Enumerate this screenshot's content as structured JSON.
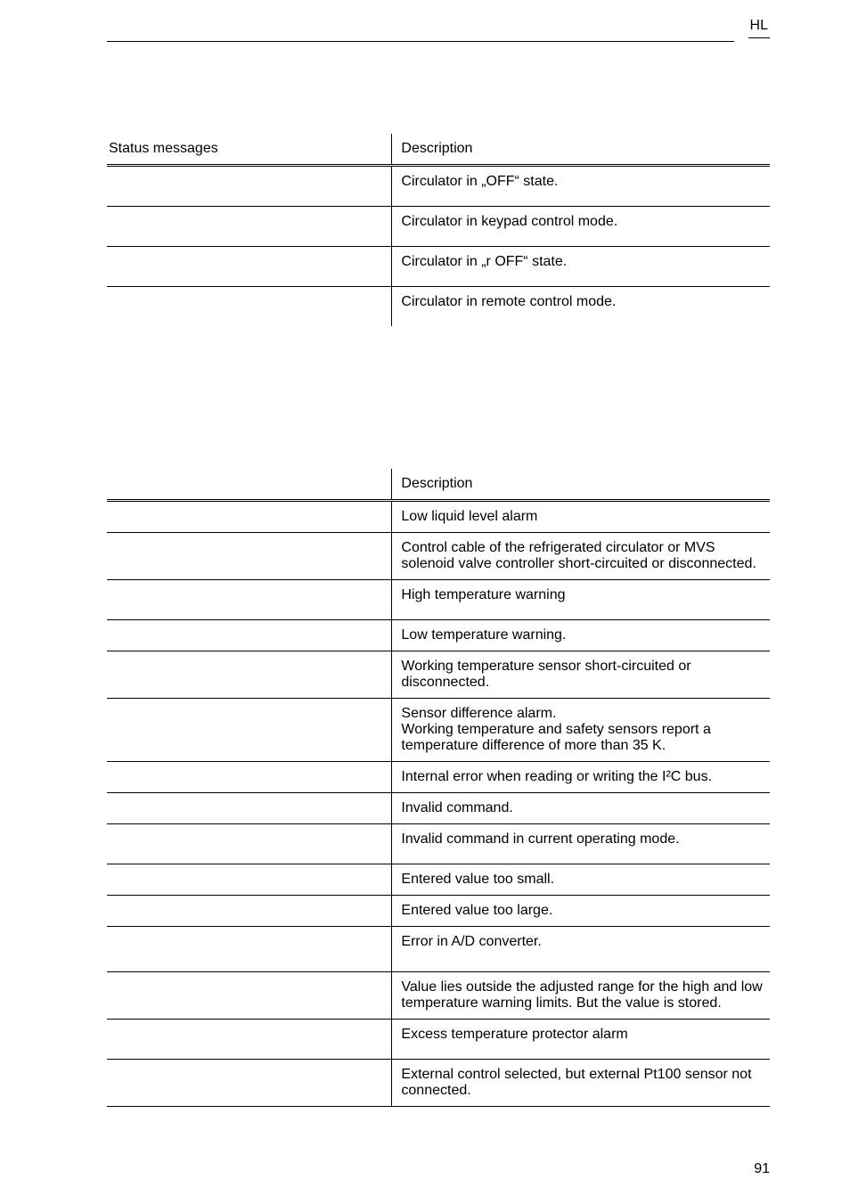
{
  "header": {
    "hl": "HL"
  },
  "table1": {
    "head_left": "Status messages",
    "head_right": "Description",
    "rows": [
      {
        "right": "Circulator in „OFF“ state."
      },
      {
        "right": "Circulator in keypad control mode."
      },
      {
        "right": "Circulator in „r OFF“ state."
      },
      {
        "right": "Circulator in remote control mode."
      }
    ]
  },
  "table2": {
    "head_right": "Description",
    "rows": [
      {
        "right": "Low liquid level alarm"
      },
      {
        "right": "Control cable of the refrigerated circulator or MVS\nsolenoid valve controller short-circuited or disconnected."
      },
      {
        "right": "High temperature warning"
      },
      {
        "right": "Low temperature warning."
      },
      {
        "right": "Working temperature sensor short-circuited or\ndisconnected."
      },
      {
        "right": "Sensor difference alarm.\nWorking temperature and safety sensors report a\ntemperature difference of more than 35 K."
      },
      {
        "right": "Internal error when reading or writing the I²C bus."
      },
      {
        "right": "Invalid command."
      },
      {
        "right": "Invalid command in current operating mode."
      },
      {
        "right": "Entered value too small."
      },
      {
        "right": "Entered value too large."
      },
      {
        "right": "Error in A/D converter."
      },
      {
        "right": "Value lies outside the adjusted range for the high and low\ntemperature warning limits. But the value is stored."
      },
      {
        "right": "Excess temperature protector alarm"
      },
      {
        "right": "External control selected, but external Pt100 sensor not\nconnected."
      }
    ]
  },
  "page_number": "91"
}
